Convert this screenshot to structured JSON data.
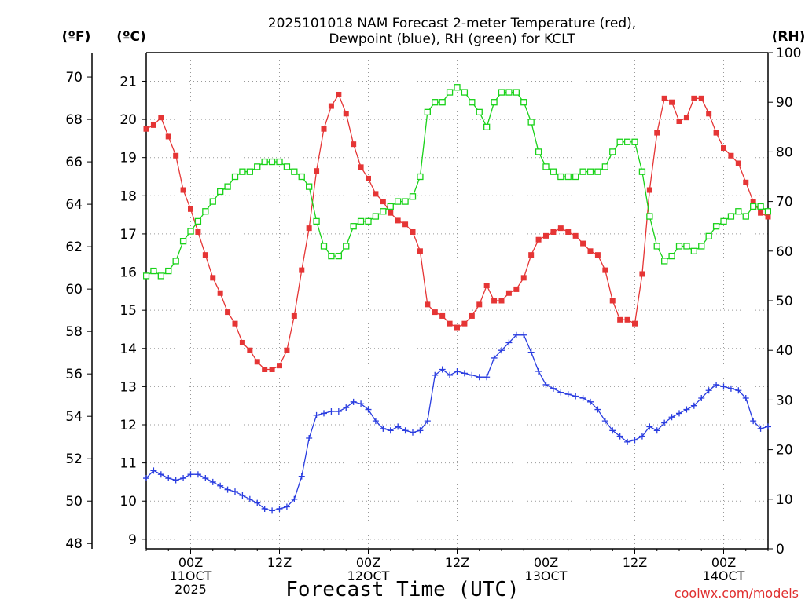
{
  "title_line1": "2025101018 NAM Forecast 2-meter Temperature (red),",
  "title_line2": "Dewpoint (blue), RH (green) for KCLT",
  "unit_f": "(ºF)",
  "unit_c": "(ºC)",
  "unit_rh": "(RH)",
  "xlabel": "Forecast Time (UTC)",
  "credit": "coolwx.com/models",
  "f_ticks": [
    "48",
    "50",
    "52",
    "54",
    "56",
    "58",
    "60",
    "62",
    "64",
    "66",
    "68",
    "70"
  ],
  "c_ticks": [
    "9",
    "10",
    "11",
    "12",
    "13",
    "14",
    "15",
    "16",
    "17",
    "18",
    "19",
    "20",
    "21"
  ],
  "rh_ticks": [
    "0",
    "10",
    "20",
    "30",
    "40",
    "50",
    "60",
    "70",
    "80",
    "90",
    "100"
  ],
  "x_ticks": [
    {
      "hour": 6,
      "lines": [
        "00Z",
        "11OCT",
        "2025"
      ]
    },
    {
      "hour": 18,
      "lines": [
        "12Z"
      ]
    },
    {
      "hour": 30,
      "lines": [
        "00Z",
        "12OCT"
      ]
    },
    {
      "hour": 42,
      "lines": [
        "12Z"
      ]
    },
    {
      "hour": 54,
      "lines": [
        "00Z",
        "13OCT"
      ]
    },
    {
      "hour": 66,
      "lines": [
        "12Z"
      ]
    },
    {
      "hour": 78,
      "lines": [
        "00Z",
        "14OCT"
      ]
    }
  ],
  "colors": {
    "temperature": "#e53535",
    "dewpoint": "#2a3de0",
    "rh": "#19d219",
    "grid": "#999999",
    "credit": "#e03030"
  },
  "chart_data": {
    "type": "line",
    "x_units": "forecast hour from 2025-10-10 18Z",
    "xlim": [
      0,
      84
    ],
    "ylim_c": [
      8.75,
      21.75
    ],
    "ylim_f": [
      47.75,
      71.15
    ],
    "ylim_rh": [
      0,
      100
    ],
    "grid": true,
    "x": [
      0,
      1,
      2,
      3,
      4,
      5,
      6,
      7,
      8,
      9,
      10,
      11,
      12,
      13,
      14,
      15,
      16,
      17,
      18,
      19,
      20,
      21,
      22,
      23,
      24,
      25,
      26,
      27,
      28,
      29,
      30,
      31,
      32,
      33,
      34,
      35,
      36,
      37,
      38,
      39,
      40,
      41,
      42,
      43,
      44,
      45,
      46,
      47,
      48,
      49,
      50,
      51,
      52,
      53,
      54,
      55,
      56,
      57,
      58,
      59,
      60,
      61,
      62,
      63,
      64,
      65,
      66,
      67,
      68,
      69,
      70,
      71,
      72,
      73,
      74,
      75,
      76,
      77,
      78,
      79,
      80,
      81,
      82,
      83,
      84
    ],
    "series": [
      {
        "name": "Temperature",
        "axis": "C",
        "marker": "filled-square",
        "values": [
          19.75,
          19.85,
          20.05,
          19.55,
          19.05,
          18.15,
          17.65,
          17.05,
          16.45,
          15.85,
          15.45,
          14.95,
          14.65,
          14.15,
          13.95,
          13.65,
          13.45,
          13.45,
          13.55,
          13.95,
          14.85,
          16.05,
          17.15,
          18.65,
          19.75,
          20.35,
          20.65,
          20.15,
          19.35,
          18.75,
          18.45,
          18.05,
          17.85,
          17.55,
          17.35,
          17.25,
          17.05,
          16.55,
          15.15,
          14.95,
          14.85,
          14.65,
          14.55,
          14.65,
          14.85,
          15.15,
          15.65,
          15.25,
          15.25,
          15.45,
          15.55,
          15.85,
          16.45,
          16.85,
          16.95,
          17.05,
          17.15,
          17.05,
          16.95,
          16.75,
          16.55,
          16.45,
          16.05,
          15.25,
          14.75,
          14.75,
          14.65,
          15.95,
          18.15,
          19.65,
          20.55,
          20.45,
          19.95,
          20.05,
          20.55,
          20.55,
          20.15,
          19.65,
          19.25,
          19.05,
          18.85,
          18.35,
          17.85,
          17.55,
          17.45
        ]
      },
      {
        "name": "Dewpoint",
        "axis": "C",
        "marker": "plus",
        "values": [
          10.6,
          10.8,
          10.7,
          10.6,
          10.55,
          10.6,
          10.7,
          10.7,
          10.6,
          10.5,
          10.4,
          10.3,
          10.25,
          10.15,
          10.05,
          9.95,
          9.8,
          9.75,
          9.8,
          9.85,
          10.05,
          10.65,
          11.65,
          12.25,
          12.3,
          12.35,
          12.35,
          12.45,
          12.6,
          12.55,
          12.4,
          12.1,
          11.9,
          11.85,
          11.95,
          11.85,
          11.8,
          11.85,
          12.1,
          13.3,
          13.45,
          13.3,
          13.4,
          13.35,
          13.3,
          13.25,
          13.25,
          13.75,
          13.95,
          14.15,
          14.35,
          14.35,
          13.9,
          13.4,
          13.05,
          12.95,
          12.85,
          12.8,
          12.75,
          12.7,
          12.6,
          12.4,
          12.1,
          11.85,
          11.7,
          11.55,
          11.6,
          11.7,
          11.95,
          11.85,
          12.05,
          12.2,
          12.3,
          12.4,
          12.5,
          12.7,
          12.9,
          13.05,
          13.0,
          12.95,
          12.9,
          12.7,
          12.1,
          11.9,
          11.95
        ]
      },
      {
        "name": "RH",
        "axis": "RH",
        "marker": "open-square",
        "values": [
          55,
          56,
          55,
          56,
          58,
          62,
          64,
          66,
          68,
          70,
          72,
          73,
          75,
          76,
          76,
          77,
          78,
          78,
          78,
          77,
          76,
          75,
          73,
          66,
          61,
          59,
          59,
          61,
          65,
          66,
          66,
          67,
          68,
          69,
          70,
          70,
          71,
          75,
          88,
          90,
          90,
          92,
          93,
          92,
          90,
          88,
          85,
          90,
          92,
          92,
          92,
          90,
          86,
          80,
          77,
          76,
          75,
          75,
          75,
          76,
          76,
          76,
          77,
          80,
          82,
          82,
          82,
          76,
          67,
          61,
          58,
          59,
          61,
          61,
          60,
          61,
          63,
          65,
          66,
          67,
          68,
          67,
          69,
          69,
          68
        ]
      }
    ]
  }
}
